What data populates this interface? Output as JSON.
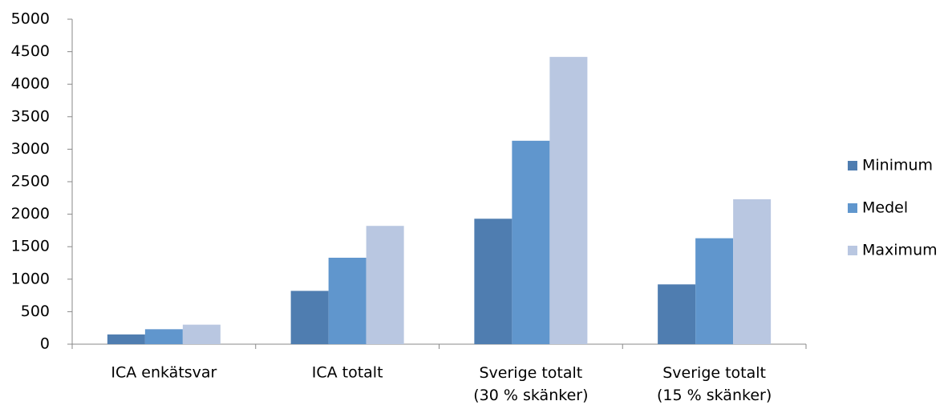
{
  "chart_data": {
    "type": "bar",
    "categories": [
      "ICA enkätsvar",
      "ICA totalt",
      "Sverige totalt\n(30 % skänker)",
      "Sverige totalt\n(15 % skänker)"
    ],
    "series": [
      {
        "name": "Minimum",
        "color": "#4f7db0",
        "values": [
          150,
          820,
          1930,
          920
        ]
      },
      {
        "name": "Medel",
        "color": "#6096cd",
        "values": [
          230,
          1330,
          3130,
          1630
        ]
      },
      {
        "name": "Maximum",
        "color": "#b9c7e1",
        "values": [
          300,
          1820,
          4420,
          2230
        ]
      }
    ],
    "ylim": [
      0,
      5000
    ],
    "yticks": [
      0,
      500,
      1000,
      1500,
      2000,
      2500,
      3000,
      3500,
      4000,
      4500,
      5000
    ],
    "legend": "right"
  }
}
